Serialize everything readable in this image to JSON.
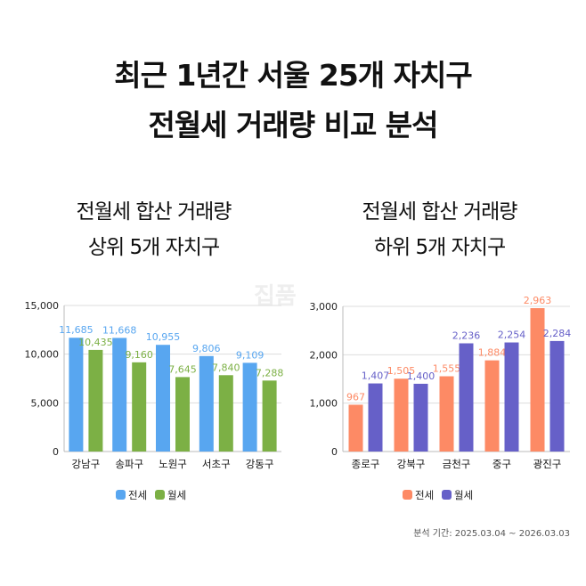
{
  "title_line1": "최근 1년간 서울 25개 자치구",
  "title_line2": "전월세 거래량 비교 분석",
  "watermark": "집품",
  "period": "분석 기간: 2025.03.04 ~ 2026.03.03",
  "chart_data": [
    {
      "type": "bar",
      "title_line1": "전월세 합산 거래량",
      "title_line2": "상위 5개 자치구",
      "categories": [
        "강남구",
        "송파구",
        "노원구",
        "서초구",
        "강동구"
      ],
      "series": [
        {
          "name": "전세",
          "values": [
            11685,
            11668,
            10955,
            9806,
            9109
          ],
          "color": "#58a6f0"
        },
        {
          "name": "월세",
          "values": [
            10435,
            9160,
            7645,
            7840,
            7288
          ],
          "color": "#7cb045"
        }
      ],
      "ylim": [
        0,
        15000
      ],
      "yticks": [
        0,
        5000,
        10000,
        15000
      ],
      "ytick_labels": [
        "0",
        "5,000",
        "10,000",
        "15,000"
      ],
      "grid": true,
      "legend": "bottom"
    },
    {
      "type": "bar",
      "title_line1": "전월세 합산 거래량",
      "title_line2": "하위 5개 자치구",
      "categories": [
        "종로구",
        "강북구",
        "금천구",
        "중구",
        "광진구"
      ],
      "series": [
        {
          "name": "전세",
          "values": [
            967,
            1505,
            1555,
            1884,
            2963
          ],
          "color": "#fd8a65"
        },
        {
          "name": "월세",
          "values": [
            1407,
            1400,
            2236,
            2254,
            2284
          ],
          "color": "#6660c8"
        }
      ],
      "ylim": [
        0,
        3000
      ],
      "yticks": [
        0,
        1000,
        2000,
        3000
      ],
      "ytick_labels": [
        "0",
        "1,000",
        "2,000",
        "3,000"
      ],
      "grid": true,
      "legend": "bottom"
    }
  ]
}
